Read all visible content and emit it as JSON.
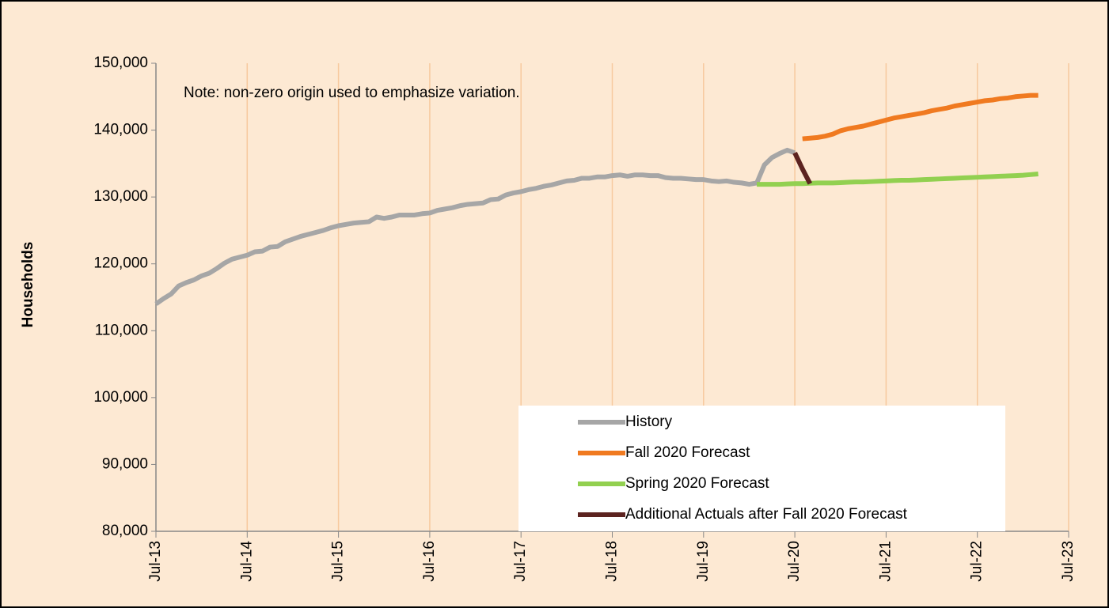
{
  "chart_data": {
    "type": "line",
    "annotation": "Note: non-zero origin used to emphasize variation.",
    "y_label": "Households",
    "categories": [
      "Jul-13",
      null,
      null,
      null,
      null,
      null,
      null,
      null,
      null,
      null,
      null,
      null,
      "Jul-14",
      null,
      null,
      null,
      null,
      null,
      null,
      null,
      null,
      null,
      null,
      null,
      "Jul-15",
      null,
      null,
      null,
      null,
      null,
      null,
      null,
      null,
      null,
      null,
      null,
      "Jul-16",
      null,
      null,
      null,
      null,
      null,
      null,
      null,
      null,
      null,
      null,
      null,
      "Jul-17",
      null,
      null,
      null,
      null,
      null,
      null,
      null,
      null,
      null,
      null,
      null,
      "Jul-18",
      null,
      null,
      null,
      null,
      null,
      null,
      null,
      null,
      null,
      null,
      null,
      "Jul-19",
      null,
      null,
      null,
      null,
      null,
      null,
      null,
      null,
      null,
      null,
      null,
      "Jul-20",
      null,
      null,
      null,
      null,
      null,
      null,
      null,
      null,
      null,
      null,
      null,
      "Jul-21",
      null,
      null,
      null,
      null,
      null,
      null,
      null,
      null,
      null,
      null,
      null,
      "Jul-22",
      null,
      null,
      null,
      null,
      null,
      null,
      null,
      null,
      null,
      null,
      null,
      "Jul-23"
    ],
    "series": [
      {
        "name": "History",
        "color": "#a6a6a6",
        "values": [
          114000,
          114800,
          115500,
          116700,
          117200,
          117600,
          118200,
          118600,
          119300,
          120100,
          120700,
          121000,
          121300,
          121800,
          121900,
          122500,
          122600,
          123300,
          123700,
          124100,
          124400,
          124700,
          125000,
          125400,
          125700,
          125900,
          126100,
          126200,
          126300,
          127000,
          126800,
          127000,
          127300,
          127300,
          127300,
          127500,
          127600,
          128000,
          128200,
          128400,
          128700,
          128900,
          129000,
          129100,
          129600,
          129700,
          130300,
          130600,
          130800,
          131100,
          131300,
          131600,
          131800,
          132100,
          132400,
          132500,
          132800,
          132800,
          133000,
          133000,
          133200,
          133300,
          133100,
          133300,
          133300,
          133200,
          133200,
          132900,
          132800,
          132800,
          132700,
          132600,
          132600,
          132400,
          132300,
          132400,
          132200,
          132100,
          131900,
          132100,
          134800,
          135900,
          136500,
          137000,
          136600,
          null,
          null,
          null,
          null,
          null,
          null,
          null,
          null,
          null,
          null,
          null,
          null,
          null,
          null,
          null,
          null,
          null,
          null,
          null,
          null,
          null,
          null,
          null,
          null,
          null,
          null,
          null,
          null,
          null,
          null,
          null,
          null,
          null,
          null,
          null,
          null
        ]
      },
      {
        "name": "Fall 2020 Forecast",
        "color": "#f07a20",
        "values": [
          null,
          null,
          null,
          null,
          null,
          null,
          null,
          null,
          null,
          null,
          null,
          null,
          null,
          null,
          null,
          null,
          null,
          null,
          null,
          null,
          null,
          null,
          null,
          null,
          null,
          null,
          null,
          null,
          null,
          null,
          null,
          null,
          null,
          null,
          null,
          null,
          null,
          null,
          null,
          null,
          null,
          null,
          null,
          null,
          null,
          null,
          null,
          null,
          null,
          null,
          null,
          null,
          null,
          null,
          null,
          null,
          null,
          null,
          null,
          null,
          null,
          null,
          null,
          null,
          null,
          null,
          null,
          null,
          null,
          null,
          null,
          null,
          null,
          null,
          null,
          null,
          null,
          null,
          null,
          null,
          null,
          null,
          null,
          null,
          null,
          138700,
          138800,
          138900,
          139100,
          139400,
          139900,
          140200,
          140400,
          140600,
          140900,
          141200,
          141500,
          141800,
          142000,
          142200,
          142400,
          142600,
          142900,
          143100,
          143300,
          143600,
          143800,
          144000,
          144200,
          144400,
          144500,
          144700,
          144800,
          145000,
          145100,
          145200,
          145200,
          null,
          null,
          null,
          null
        ]
      },
      {
        "name": "Spring 2020 Forecast",
        "color": "#92d050",
        "values": [
          null,
          null,
          null,
          null,
          null,
          null,
          null,
          null,
          null,
          null,
          null,
          null,
          null,
          null,
          null,
          null,
          null,
          null,
          null,
          null,
          null,
          null,
          null,
          null,
          null,
          null,
          null,
          null,
          null,
          null,
          null,
          null,
          null,
          null,
          null,
          null,
          null,
          null,
          null,
          null,
          null,
          null,
          null,
          null,
          null,
          null,
          null,
          null,
          null,
          null,
          null,
          null,
          null,
          null,
          null,
          null,
          null,
          null,
          null,
          null,
          null,
          null,
          null,
          null,
          null,
          null,
          null,
          null,
          null,
          null,
          null,
          null,
          null,
          null,
          null,
          null,
          null,
          null,
          null,
          131900,
          131900,
          131900,
          131900,
          131950,
          132000,
          132000,
          132050,
          132100,
          132100,
          132100,
          132150,
          132200,
          132250,
          132250,
          132300,
          132350,
          132400,
          132450,
          132500,
          132500,
          132550,
          132600,
          132650,
          132700,
          132750,
          132800,
          132850,
          132900,
          132950,
          133000,
          133050,
          133100,
          133150,
          133200,
          133250,
          133350,
          133450,
          null,
          null,
          null,
          null
        ]
      },
      {
        "name": "Additional Actuals after Fall 2020 Forecast",
        "color": "#5c2320",
        "values": [
          null,
          null,
          null,
          null,
          null,
          null,
          null,
          null,
          null,
          null,
          null,
          null,
          null,
          null,
          null,
          null,
          null,
          null,
          null,
          null,
          null,
          null,
          null,
          null,
          null,
          null,
          null,
          null,
          null,
          null,
          null,
          null,
          null,
          null,
          null,
          null,
          null,
          null,
          null,
          null,
          null,
          null,
          null,
          null,
          null,
          null,
          null,
          null,
          null,
          null,
          null,
          null,
          null,
          null,
          null,
          null,
          null,
          null,
          null,
          null,
          null,
          null,
          null,
          null,
          null,
          null,
          null,
          null,
          null,
          null,
          null,
          null,
          null,
          null,
          null,
          null,
          null,
          null,
          null,
          null,
          null,
          null,
          null,
          null,
          136600,
          134200,
          132000,
          null,
          null,
          null,
          null,
          null,
          null,
          null,
          null,
          null,
          null,
          null,
          null,
          null,
          null,
          null,
          null,
          null,
          null,
          null,
          null,
          null,
          null,
          null,
          null,
          null,
          null,
          null,
          null,
          null,
          null,
          null,
          null,
          null,
          null
        ]
      }
    ],
    "ylim": [
      80000,
      150000
    ],
    "yticks": [
      {
        "value": 80000,
        "label": "80,000"
      },
      {
        "value": 90000,
        "label": "90,000"
      },
      {
        "value": 100000,
        "label": "100,000"
      },
      {
        "value": 110000,
        "label": "110,000"
      },
      {
        "value": 120000,
        "label": "120,000"
      },
      {
        "value": 130000,
        "label": "130,000"
      },
      {
        "value": 140000,
        "label": "140,000"
      },
      {
        "value": 150000,
        "label": "150,000"
      }
    ],
    "grid": true,
    "legend": "bottom-right"
  }
}
